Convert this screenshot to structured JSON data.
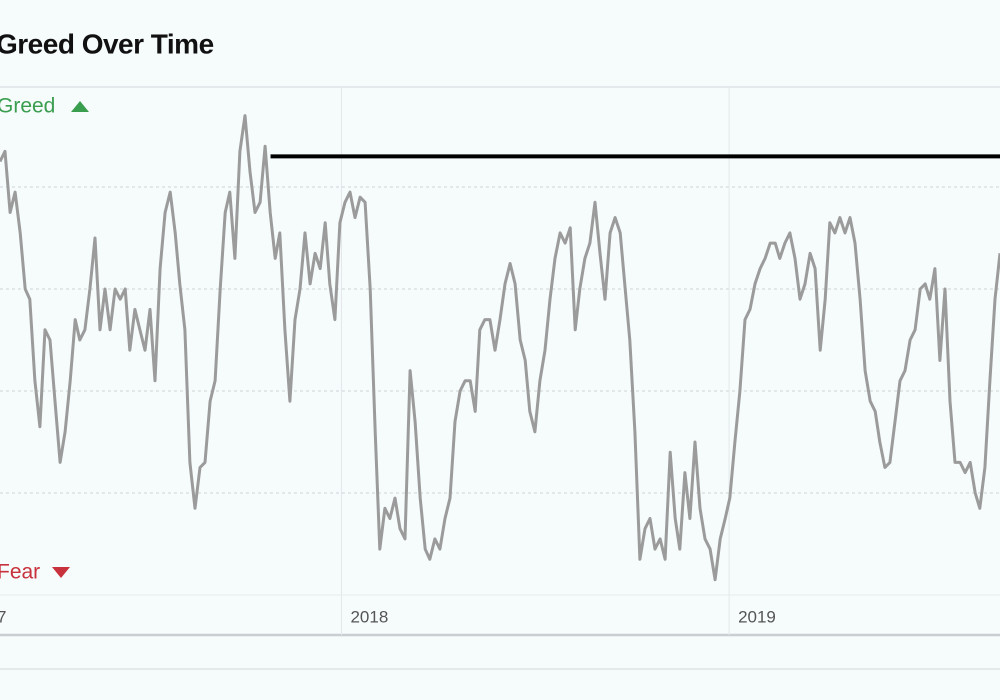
{
  "chart_data": {
    "type": "line",
    "title": "Greed Over Time",
    "top_label": "Greed",
    "bottom_label": "Fear",
    "top_label_color": "#3a9e4f",
    "bottom_label_color": "#c8323c",
    "xlim": [
      2017.119,
      2019.699
    ],
    "xticks": [
      {
        "value": 2017,
        "label": "7"
      },
      2018,
      2019
    ],
    "ylim": [
      0,
      100
    ],
    "yticks": [
      20,
      40,
      60,
      80
    ],
    "grid": true,
    "reference_line": {
      "value": 86,
      "x": [
        2017.817,
        2019.699
      ],
      "color": "#000000"
    },
    "x": [
      2017.119,
      2017.132,
      2017.145,
      2017.158,
      2017.171,
      2017.184,
      2017.196,
      2017.209,
      2017.222,
      2017.235,
      2017.248,
      2017.261,
      2017.274,
      2017.287,
      2017.3,
      2017.313,
      2017.325,
      2017.338,
      2017.351,
      2017.364,
      2017.377,
      2017.39,
      2017.403,
      2017.416,
      2017.429,
      2017.442,
      2017.454,
      2017.467,
      2017.48,
      2017.493,
      2017.506,
      2017.519,
      2017.532,
      2017.545,
      2017.558,
      2017.571,
      2017.583,
      2017.596,
      2017.609,
      2017.622,
      2017.635,
      2017.648,
      2017.661,
      2017.674,
      2017.687,
      2017.7,
      2017.712,
      2017.725,
      2017.738,
      2017.751,
      2017.764,
      2017.777,
      2017.79,
      2017.803,
      2017.816,
      2017.829,
      2017.841,
      2017.854,
      2017.867,
      2017.88,
      2017.893,
      2017.906,
      2017.919,
      2017.932,
      2017.945,
      2017.958,
      2017.97,
      2017.983,
      2017.996,
      2018.009,
      2018.022,
      2018.035,
      2018.048,
      2018.061,
      2018.074,
      2018.087,
      2018.099,
      2018.112,
      2018.125,
      2018.138,
      2018.151,
      2018.164,
      2018.177,
      2018.19,
      2018.203,
      2018.216,
      2018.228,
      2018.241,
      2018.254,
      2018.267,
      2018.28,
      2018.293,
      2018.306,
      2018.319,
      2018.332,
      2018.345,
      2018.357,
      2018.37,
      2018.383,
      2018.396,
      2018.409,
      2018.422,
      2018.435,
      2018.448,
      2018.461,
      2018.474,
      2018.486,
      2018.499,
      2018.512,
      2018.525,
      2018.538,
      2018.551,
      2018.564,
      2018.577,
      2018.59,
      2018.603,
      2018.615,
      2018.628,
      2018.641,
      2018.654,
      2018.667,
      2018.68,
      2018.693,
      2018.706,
      2018.719,
      2018.732,
      2018.744,
      2018.757,
      2018.77,
      2018.783,
      2018.796,
      2018.809,
      2018.822,
      2018.835,
      2018.848,
      2018.861,
      2018.873,
      2018.886,
      2018.899,
      2018.912,
      2018.925,
      2018.938,
      2018.951,
      2018.964,
      2018.977,
      2018.99,
      2019.002,
      2019.015,
      2019.028,
      2019.041,
      2019.054,
      2019.067,
      2019.08,
      2019.093,
      2019.106,
      2019.119,
      2019.131,
      2019.144,
      2019.157,
      2019.17,
      2019.183,
      2019.196,
      2019.209,
      2019.222,
      2019.235,
      2019.248,
      2019.26,
      2019.273,
      2019.286,
      2019.299,
      2019.312,
      2019.325,
      2019.338,
      2019.351,
      2019.364,
      2019.377,
      2019.389,
      2019.402,
      2019.415,
      2019.428,
      2019.441,
      2019.454,
      2019.467,
      2019.48,
      2019.493,
      2019.506,
      2019.518,
      2019.531,
      2019.544,
      2019.557,
      2019.57,
      2019.583,
      2019.596,
      2019.609,
      2019.622,
      2019.635,
      2019.647,
      2019.66,
      2019.673,
      2019.686,
      2019.699
    ],
    "series": [
      {
        "color": "#9b9b9b",
        "values": [
          85,
          87,
          75,
          79,
          71,
          60,
          58,
          42,
          33,
          52,
          50,
          38,
          26,
          32,
          42,
          54,
          50,
          52,
          60,
          70,
          52,
          60,
          52,
          60,
          58,
          60,
          48,
          56,
          52,
          48,
          56,
          42,
          64,
          75,
          79,
          71,
          61,
          52,
          26,
          17,
          25,
          26,
          38,
          42,
          60,
          75,
          79,
          66,
          87,
          94,
          83,
          75,
          77,
          88,
          75,
          66,
          71,
          52,
          38,
          54,
          60,
          71,
          61,
          67,
          64,
          73,
          61,
          54,
          73,
          77,
          79,
          74,
          78,
          77,
          60,
          32,
          9,
          17,
          15,
          19,
          13,
          11,
          44,
          34,
          19,
          9,
          7,
          11,
          9,
          15,
          19,
          34,
          40,
          42,
          42,
          36,
          52,
          54,
          54,
          48,
          54,
          61,
          65,
          61,
          50,
          46,
          36,
          32,
          42,
          48,
          58,
          66,
          71,
          69,
          72,
          52,
          60,
          66,
          69,
          77,
          67,
          58,
          71,
          74,
          71,
          60,
          50,
          32,
          7,
          13,
          15,
          9,
          11,
          7,
          28,
          15,
          9,
          24,
          15,
          30,
          17,
          11,
          9,
          3,
          11,
          15,
          19,
          30,
          40,
          54,
          56,
          61,
          64,
          66,
          69,
          69,
          66,
          69,
          71,
          66,
          58,
          61,
          67,
          64,
          48,
          58,
          73,
          71,
          74,
          71,
          74,
          69,
          58,
          44,
          38,
          36,
          30,
          25,
          26,
          34,
          42,
          44,
          50,
          52,
          60,
          61,
          58,
          64,
          46,
          60,
          38,
          26,
          26,
          24,
          26,
          20,
          17,
          25,
          42,
          58,
          67
        ]
      }
    ]
  }
}
